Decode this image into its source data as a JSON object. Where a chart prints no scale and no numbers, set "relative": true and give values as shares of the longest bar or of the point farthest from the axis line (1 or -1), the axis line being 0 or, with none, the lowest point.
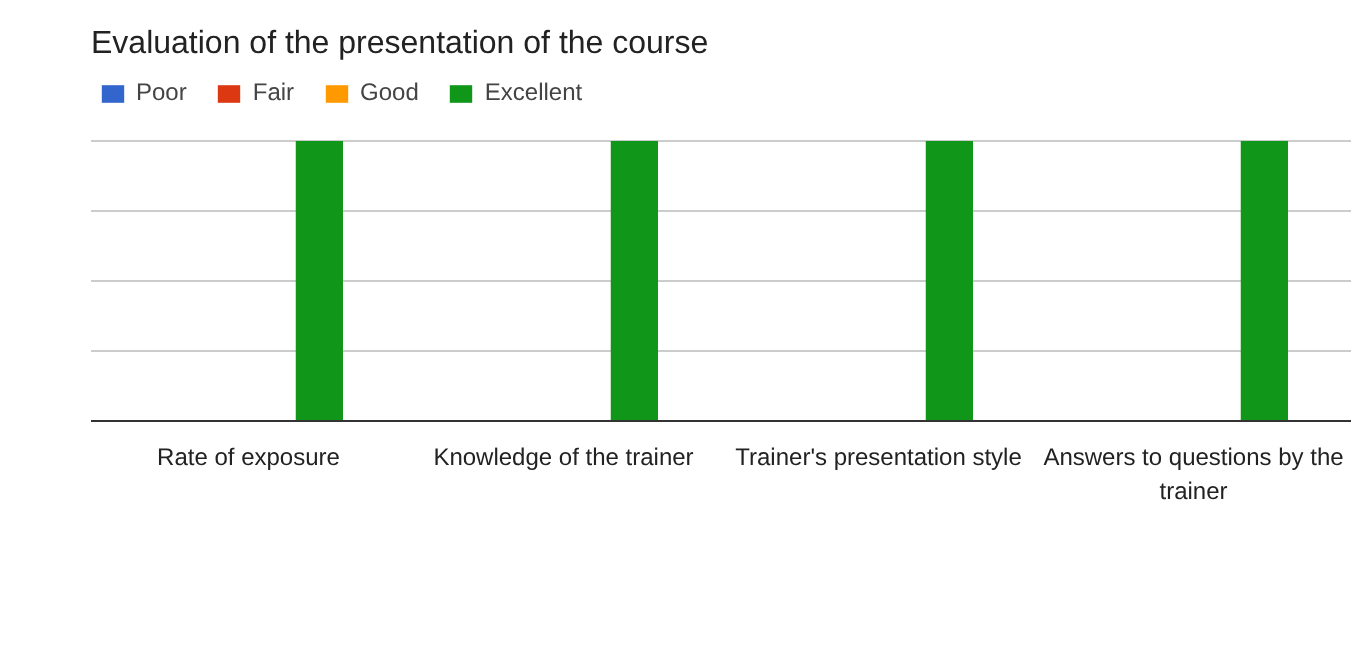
{
  "chart_data": {
    "type": "bar",
    "title": "Evaluation of the presentation of the course",
    "relative": true,
    "categories": [
      "Rate of exposure",
      "Knowledge of the trainer",
      "Trainer's presentation style",
      "Answers to questions by the trainer"
    ],
    "series": [
      {
        "name": "Poor",
        "color": "#3366cc",
        "values": [
          0,
          0,
          0,
          0
        ]
      },
      {
        "name": "Fair",
        "color": "#dc3912",
        "values": [
          0,
          0,
          0,
          0
        ]
      },
      {
        "name": "Good",
        "color": "#ff9900",
        "values": [
          0,
          0,
          0,
          0
        ]
      },
      {
        "name": "Excellent",
        "color": "#109618",
        "values": [
          1,
          1,
          1,
          1
        ]
      }
    ],
    "grid": "y",
    "legend": "top left"
  }
}
